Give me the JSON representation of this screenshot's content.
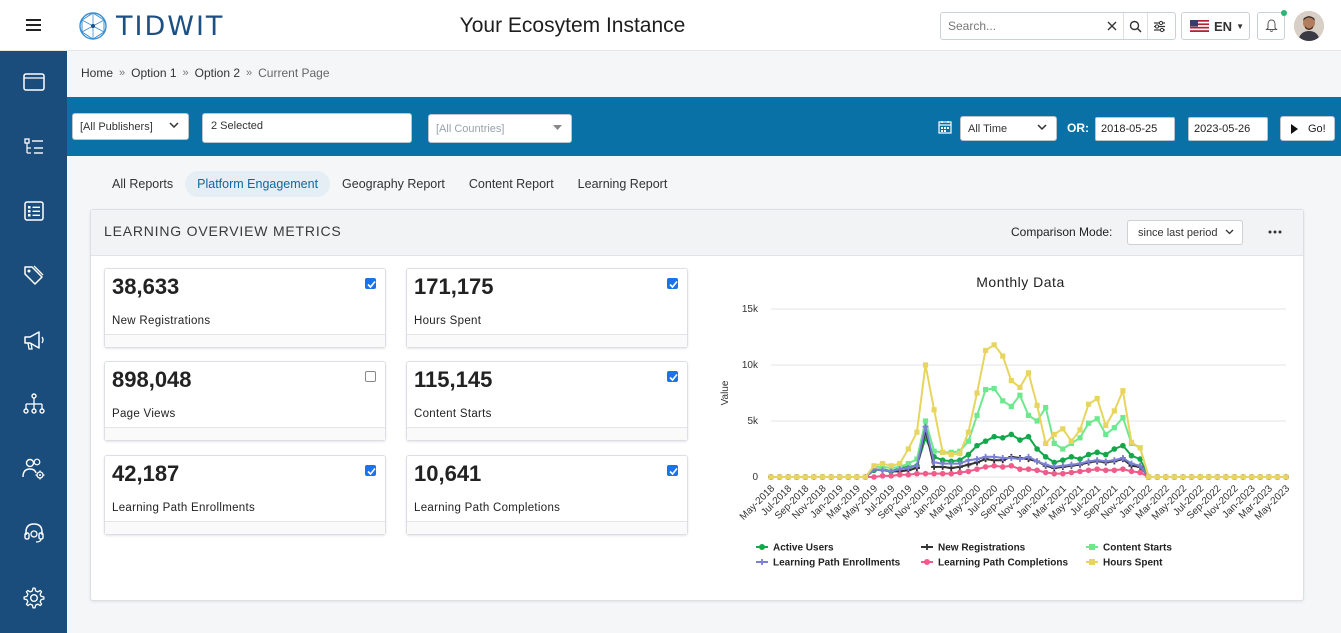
{
  "header": {
    "brand": "TIDWIT",
    "title": "Your Ecosytem Instance",
    "search_placeholder": "Search...",
    "language": "EN"
  },
  "sidebar": {
    "items": [
      {
        "icon": "window-icon"
      },
      {
        "icon": "list-tree-icon"
      },
      {
        "icon": "checklist-icon"
      },
      {
        "icon": "tag-icon"
      },
      {
        "icon": "megaphone-icon"
      },
      {
        "icon": "hierarchy-icon"
      },
      {
        "icon": "users-gear-icon"
      },
      {
        "icon": "headset-icon"
      },
      {
        "icon": "gear-icon"
      }
    ]
  },
  "breadcrumb": {
    "items": [
      "Home",
      "Option 1",
      "Option 2"
    ],
    "current": "Current Page",
    "separator": "»"
  },
  "filters": {
    "publishers": "[All Publishers]",
    "selected": "2 Selected",
    "countries": "[All Countries]",
    "time": "All Time",
    "or_label": "OR:",
    "start_date": "2018-05-25",
    "end_date": "2023-05-26",
    "go_label": "Go!"
  },
  "tabs": [
    {
      "label": "All Reports",
      "active": false
    },
    {
      "label": "Platform Engagement",
      "active": true
    },
    {
      "label": "Geography Report",
      "active": false
    },
    {
      "label": "Content Report",
      "active": false
    },
    {
      "label": "Learning Report",
      "active": false
    }
  ],
  "panel": {
    "title": "LEARNING OVERVIEW METRICS",
    "comparison_label": "Comparison Mode:",
    "comparison_value": "since last period"
  },
  "metrics": [
    {
      "value": "38,633",
      "label": "New Registrations",
      "checked": true
    },
    {
      "value": "171,175",
      "label": "Hours Spent",
      "checked": true
    },
    {
      "value": "898,048",
      "label": "Page Views",
      "checked": false
    },
    {
      "value": "115,145",
      "label": "Content Starts",
      "checked": true
    },
    {
      "value": "42,187",
      "label": "Learning Path Enrollments",
      "checked": true
    },
    {
      "value": "10,641",
      "label": "Learning Path Completions",
      "checked": true
    }
  ],
  "colors": {
    "sidebar": "#1b4d7c",
    "filterbar": "#0a71a6",
    "accent": "#0a6aa1"
  },
  "chart_data": {
    "type": "line",
    "title": "Monthly Data",
    "ylabel": "Value",
    "xlabel": "",
    "ylim": [
      0,
      15000
    ],
    "yticks": [
      0,
      5000,
      10000,
      15000
    ],
    "ytick_labels": [
      "0",
      "5k",
      "10k",
      "15k"
    ],
    "x": [
      "May-2018",
      "Jun-2018",
      "Jul-2018",
      "Aug-2018",
      "Sep-2018",
      "Oct-2018",
      "Nov-2018",
      "Dec-2018",
      "Jan-2019",
      "Feb-2019",
      "Mar-2019",
      "Apr-2019",
      "May-2019",
      "Jun-2019",
      "Jul-2019",
      "Aug-2019",
      "Sep-2019",
      "Oct-2019",
      "Nov-2019",
      "Dec-2019",
      "Jan-2020",
      "Feb-2020",
      "Mar-2020",
      "Apr-2020",
      "May-2020",
      "Jun-2020",
      "Jul-2020",
      "Aug-2020",
      "Sep-2020",
      "Oct-2020",
      "Nov-2020",
      "Dec-2020",
      "Jan-2021",
      "Feb-2021",
      "Mar-2021",
      "Apr-2021",
      "May-2021",
      "Jun-2021",
      "Jul-2021",
      "Aug-2021",
      "Sep-2021",
      "Oct-2021",
      "Nov-2021",
      "Dec-2021",
      "Jan-2022",
      "Feb-2022",
      "Mar-2022",
      "Apr-2022",
      "May-2022",
      "Jun-2022",
      "Jul-2022",
      "Aug-2022",
      "Sep-2022",
      "Oct-2022",
      "Nov-2022",
      "Dec-2022",
      "Jan-2023",
      "Feb-2023",
      "Mar-2023",
      "Apr-2023",
      "May-2023"
    ],
    "tick_labels": [
      "May-2018",
      "Jul-2018",
      "Sep-2018",
      "Nov-2018",
      "Jan-2019",
      "Mar-2019",
      "May-2019",
      "Jul-2019",
      "Sep-2019",
      "Nov-2019",
      "Jan-2020",
      "Mar-2020",
      "May-2020",
      "Jul-2020",
      "Sep-2020",
      "Nov-2020",
      "Jan-2021",
      "Mar-2021",
      "May-2021",
      "Jul-2021",
      "Sep-2021",
      "Nov-2021",
      "Jan-2022",
      "Mar-2022",
      "May-2022",
      "Jul-2022",
      "Sep-2022",
      "Nov-2022",
      "Jan-2023",
      "Mar-2023",
      "May-2023"
    ],
    "legend_position": "bottom",
    "series": [
      {
        "name": "Active Users",
        "color": "#12a84a",
        "values": [
          0,
          0,
          0,
          0,
          0,
          0,
          0,
          0,
          0,
          0,
          0,
          0,
          600,
          700,
          500,
          800,
          900,
          1000,
          3500,
          1800,
          1500,
          1400,
          1500,
          2000,
          2800,
          3200,
          3600,
          3500,
          3800,
          3300,
          3600,
          2500,
          1800,
          1300,
          1500,
          1800,
          1600,
          2000,
          2200,
          2000,
          2500,
          2800,
          1900,
          1600,
          0,
          0,
          0,
          0,
          0,
          0,
          0,
          0,
          0,
          0,
          0,
          0,
          0,
          0,
          0,
          0,
          0
        ]
      },
      {
        "name": "New Registrations",
        "color": "#333333",
        "values": [
          0,
          0,
          0,
          0,
          0,
          0,
          0,
          0,
          0,
          0,
          0,
          0,
          700,
          600,
          500,
          500,
          600,
          800,
          4200,
          900,
          900,
          800,
          900,
          1100,
          1300,
          1600,
          1500,
          1500,
          1800,
          1700,
          1600,
          1400,
          1000,
          800,
          900,
          1000,
          1100,
          1300,
          1400,
          1300,
          1400,
          1600,
          1000,
          900,
          0,
          0,
          0,
          0,
          0,
          0,
          0,
          0,
          0,
          0,
          0,
          0,
          0,
          0,
          0,
          0,
          0
        ]
      },
      {
        "name": "Content Starts",
        "color": "#6ee88e",
        "values": [
          0,
          0,
          0,
          0,
          0,
          0,
          0,
          0,
          0,
          0,
          0,
          0,
          900,
          900,
          800,
          900,
          1200,
          1600,
          5000,
          2300,
          2200,
          2200,
          2300,
          3200,
          5500,
          7800,
          7900,
          6800,
          6300,
          7300,
          5500,
          5000,
          6200,
          3000,
          2500,
          3000,
          3500,
          4800,
          5200,
          3800,
          4400,
          5300,
          3000,
          2600,
          0,
          0,
          0,
          0,
          0,
          0,
          0,
          0,
          0,
          0,
          0,
          0,
          0,
          0,
          0,
          0,
          0
        ]
      },
      {
        "name": "Learning Path Enrollments",
        "color": "#7b80d4",
        "values": [
          0,
          0,
          0,
          0,
          0,
          0,
          0,
          0,
          0,
          0,
          0,
          0,
          700,
          600,
          500,
          700,
          800,
          1000,
          4500,
          1300,
          1200,
          1200,
          1200,
          1500,
          1600,
          1800,
          1800,
          1700,
          1700,
          1600,
          1800,
          1400,
          1100,
          900,
          1000,
          1100,
          1200,
          1400,
          1500,
          1400,
          1500,
          1700,
          1200,
          1000,
          0,
          0,
          0,
          0,
          0,
          0,
          0,
          0,
          0,
          0,
          0,
          0,
          0,
          0,
          0,
          0,
          0
        ]
      },
      {
        "name": "Learning Path Completions",
        "color": "#ef5b8a",
        "values": [
          0,
          0,
          0,
          0,
          0,
          0,
          0,
          0,
          0,
          0,
          0,
          0,
          0,
          100,
          100,
          200,
          200,
          300,
          300,
          300,
          300,
          300,
          400,
          500,
          700,
          900,
          1000,
          900,
          1000,
          700,
          700,
          600,
          400,
          300,
          300,
          400,
          500,
          600,
          700,
          600,
          600,
          700,
          500,
          400,
          0,
          0,
          0,
          0,
          0,
          0,
          0,
          0,
          0,
          0,
          0,
          0,
          0,
          0,
          0,
          0,
          0
        ]
      },
      {
        "name": "Hours Spent",
        "color": "#e8d560",
        "values": [
          0,
          0,
          0,
          0,
          0,
          0,
          0,
          0,
          0,
          0,
          0,
          0,
          1000,
          1200,
          1000,
          1200,
          2500,
          4000,
          10000,
          6000,
          2200,
          2000,
          2100,
          4000,
          7500,
          11300,
          11800,
          10800,
          8600,
          8000,
          9300,
          6400,
          3000,
          3800,
          4300,
          3200,
          4200,
          6500,
          7000,
          4600,
          5900,
          7700,
          3100,
          2600,
          0,
          0,
          0,
          0,
          0,
          0,
          0,
          0,
          0,
          0,
          0,
          0,
          0,
          0,
          0,
          0,
          0
        ]
      }
    ]
  }
}
